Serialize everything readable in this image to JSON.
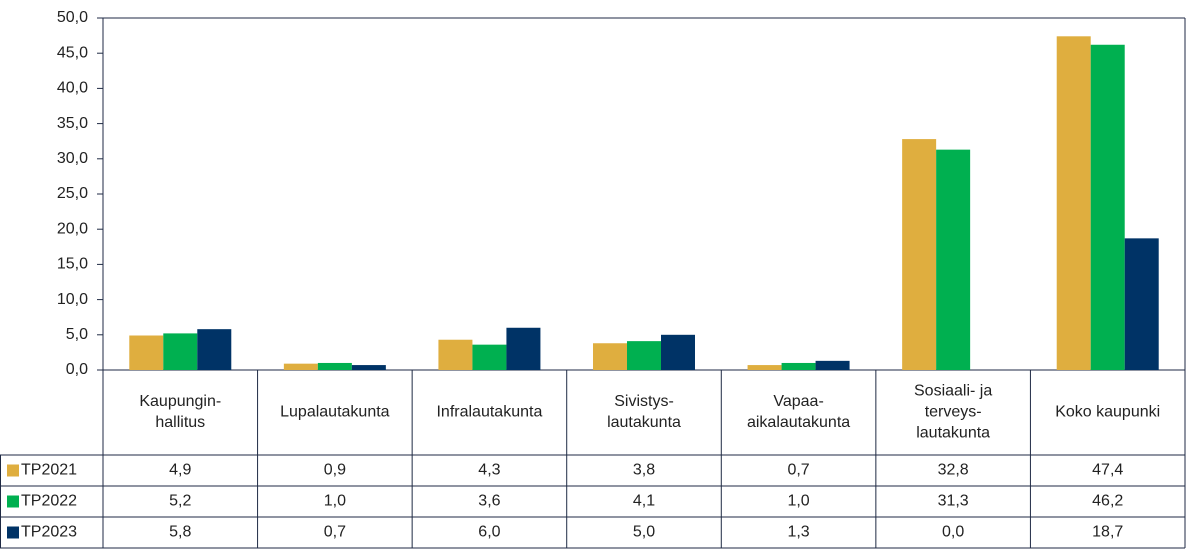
{
  "chart_data": {
    "type": "bar",
    "categories": [
      "Kaupungin-\nhallitus",
      "Lupalautakunta",
      "Infralautakunta",
      "Sivistys-\nlautakunta",
      "Vapaa-\naikalautakunta",
      "Sosiaali- ja\nterveys-\nlautakunta",
      "Koko kaupunki"
    ],
    "series": [
      {
        "name": "TP2021",
        "color": "#dfae3f",
        "values": [
          4.9,
          0.9,
          4.3,
          3.8,
          0.7,
          32.8,
          47.4
        ],
        "value_labels": [
          "4,9",
          "0,9",
          "4,3",
          "3,8",
          "0,7",
          "32,8",
          "47,4"
        ]
      },
      {
        "name": "TP2022",
        "color": "#00b050",
        "values": [
          5.2,
          1.0,
          3.6,
          4.1,
          1.0,
          31.3,
          46.2
        ],
        "value_labels": [
          "5,2",
          "1,0",
          "3,6",
          "4,1",
          "1,0",
          "31,3",
          "46,2"
        ]
      },
      {
        "name": "TP2023",
        "color": "#003366",
        "values": [
          5.8,
          0.7,
          6.0,
          5.0,
          1.3,
          0.0,
          18.7
        ],
        "value_labels": [
          "5,8",
          "0,7",
          "6,0",
          "5,0",
          "1,3",
          "0,0",
          "18,7"
        ]
      }
    ],
    "ylim": [
      0,
      50
    ],
    "yticks": [
      {
        "value": 0,
        "label": "0,0"
      },
      {
        "value": 5,
        "label": "5,0"
      },
      {
        "value": 10,
        "label": "10,0"
      },
      {
        "value": 15,
        "label": "15,0"
      },
      {
        "value": 20,
        "label": "20,0"
      },
      {
        "value": 25,
        "label": "25,0"
      },
      {
        "value": 30,
        "label": "30,0"
      },
      {
        "value": 35,
        "label": "35,0"
      },
      {
        "value": 40,
        "label": "40,0"
      },
      {
        "value": 45,
        "label": "45,0"
      },
      {
        "value": 50,
        "label": "50,0"
      }
    ],
    "grid": false
  }
}
